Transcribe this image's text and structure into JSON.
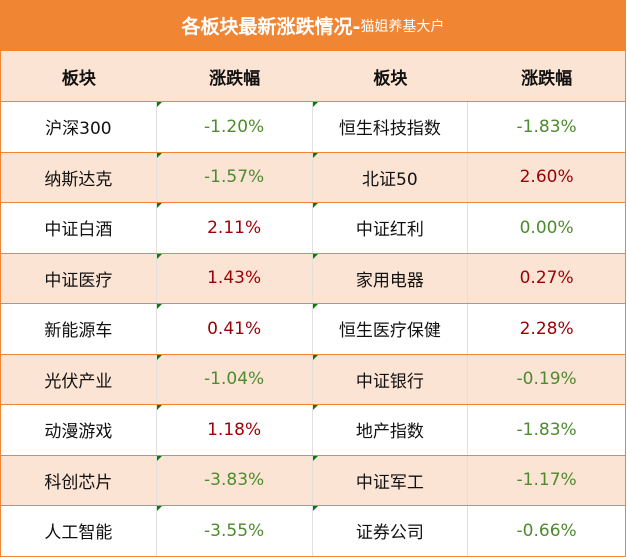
{
  "title": {
    "main": "各板块最新涨跌情况-",
    "sub": "猫姐养基大户"
  },
  "headers": [
    "板块",
    "涨跌幅",
    "板块",
    "涨跌幅"
  ],
  "colors": {
    "accent": "#F08533",
    "header_bg": "#FCE4D4",
    "down": "#4E8A2E",
    "up": "#9C0006"
  },
  "rows": [
    {
      "name1": "沪深300",
      "chg1": "-1.20%",
      "name2": "恒生科技指数",
      "chg2": "-1.83%"
    },
    {
      "name1": "纳斯达克",
      "chg1": "-1.57%",
      "name2": "北证50",
      "chg2": "2.60%"
    },
    {
      "name1": "中证白酒",
      "chg1": "2.11%",
      "name2": "中证红利",
      "chg2": "0.00%"
    },
    {
      "name1": "中证医疗",
      "chg1": "1.43%",
      "name2": "家用电器",
      "chg2": "0.27%"
    },
    {
      "name1": "新能源车",
      "chg1": "0.41%",
      "name2": "恒生医疗保健",
      "chg2": "2.28%"
    },
    {
      "name1": "光伏产业",
      "chg1": "-1.04%",
      "name2": "中证银行",
      "chg2": "-0.19%"
    },
    {
      "name1": "动漫游戏",
      "chg1": "1.18%",
      "name2": "地产指数",
      "chg2": "-1.83%"
    },
    {
      "name1": "科创芯片",
      "chg1": "-3.83%",
      "name2": "中证军工",
      "chg2": "-1.17%"
    },
    {
      "name1": "人工智能",
      "chg1": "-3.55%",
      "name2": "证券公司",
      "chg2": "-0.66%"
    }
  ]
}
